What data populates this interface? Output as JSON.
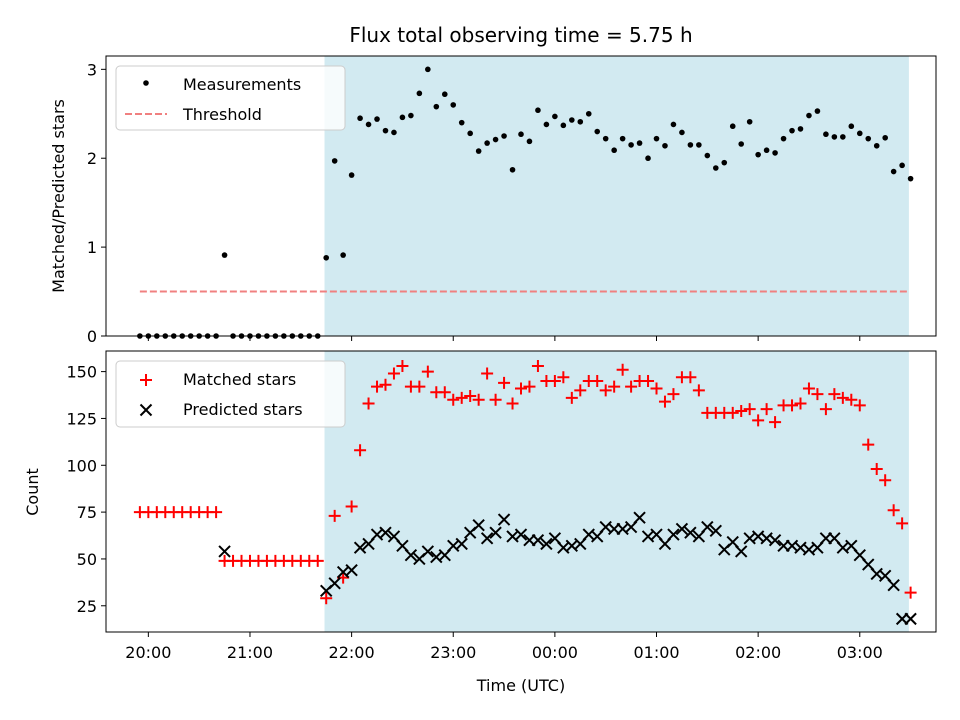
{
  "chart_data": {
    "type": "scatter",
    "title": "Flux total observing time = 5.75 h",
    "shaded_region": {
      "start": "21:44",
      "end": "03:29",
      "color": "#add8e6"
    },
    "top": {
      "ylabel": "Matched/Predicted stars",
      "ylim": [
        0,
        3.15
      ],
      "yticks": [
        "0",
        "1",
        "2",
        "3"
      ],
      "legend": {
        "position": "upper-left",
        "entries": [
          "Measurements",
          "Threshold"
        ]
      },
      "threshold": {
        "name": "Threshold",
        "value": 0.5,
        "x_start": "19:55",
        "x_end": "03:29",
        "color": "#f08080"
      },
      "measurements": {
        "name": "Measurements",
        "x": [
          "19:55",
          "20:00",
          "20:05",
          "20:10",
          "20:15",
          "20:20",
          "20:25",
          "20:30",
          "20:35",
          "20:40",
          "20:45",
          "20:50",
          "20:55",
          "21:00",
          "21:05",
          "21:10",
          "21:15",
          "21:20",
          "21:25",
          "21:30",
          "21:35",
          "21:40",
          "21:45",
          "21:50",
          "21:55",
          "22:00",
          "22:05",
          "22:10",
          "22:15",
          "22:20",
          "22:25",
          "22:30",
          "22:35",
          "22:40",
          "22:45",
          "22:50",
          "22:55",
          "23:00",
          "23:05",
          "23:10",
          "23:15",
          "23:20",
          "23:25",
          "23:30",
          "23:35",
          "23:40",
          "23:45",
          "23:50",
          "23:55",
          "00:00",
          "00:05",
          "00:10",
          "00:15",
          "00:20",
          "00:25",
          "00:30",
          "00:35",
          "00:40",
          "00:45",
          "00:50",
          "00:55",
          "01:00",
          "01:05",
          "01:10",
          "01:15",
          "01:20",
          "01:25",
          "01:30",
          "01:35",
          "01:40",
          "01:45",
          "01:50",
          "01:55",
          "02:00",
          "02:05",
          "02:10",
          "02:15",
          "02:20",
          "02:25",
          "02:30",
          "02:35",
          "02:40",
          "02:45",
          "02:50",
          "02:55",
          "03:00",
          "03:05",
          "03:10",
          "03:15",
          "03:20",
          "03:25",
          "03:30"
        ],
        "y": [
          0,
          0,
          0,
          0,
          0,
          0,
          0,
          0,
          0,
          0,
          0.91,
          0,
          0,
          0,
          0,
          0,
          0,
          0,
          0,
          0,
          0,
          0,
          0.88,
          1.97,
          0.91,
          1.81,
          2.45,
          2.38,
          2.44,
          2.31,
          2.29,
          2.46,
          2.48,
          2.73,
          3.0,
          2.58,
          2.72,
          2.6,
          2.4,
          2.28,
          2.08,
          2.17,
          2.21,
          2.25,
          1.87,
          2.27,
          2.19,
          2.54,
          2.38,
          2.47,
          2.37,
          2.43,
          2.41,
          2.5,
          2.3,
          2.22,
          2.09,
          2.22,
          2.15,
          2.17,
          2.0,
          2.22,
          2.14,
          2.38,
          2.29,
          2.15,
          2.15,
          2.03,
          1.89,
          1.95,
          2.36,
          2.16,
          2.41,
          2.04,
          2.09,
          2.06,
          2.22,
          2.31,
          2.33,
          2.48,
          2.53,
          2.27,
          2.24,
          2.24,
          2.36,
          2.28,
          2.22,
          2.14,
          2.23,
          1.85,
          1.92,
          1.77
        ]
      }
    },
    "bottom": {
      "ylabel": "Count",
      "xlabel": "Time (UTC)",
      "ylim": [
        11,
        161
      ],
      "yticks": [
        "25",
        "50",
        "75",
        "100",
        "125",
        "150"
      ],
      "xticks": [
        "20:00",
        "21:00",
        "22:00",
        "23:00",
        "00:00",
        "01:00",
        "02:00",
        "03:00"
      ],
      "legend": {
        "position": "upper-left",
        "entries": [
          "Matched stars",
          "Predicted stars"
        ]
      },
      "series": [
        {
          "name": "Matched stars",
          "color": "#ff0000",
          "marker": "plus",
          "x": [
            "19:55",
            "20:00",
            "20:05",
            "20:10",
            "20:15",
            "20:20",
            "20:25",
            "20:30",
            "20:35",
            "20:40",
            "20:45",
            "20:50",
            "20:55",
            "21:00",
            "21:05",
            "21:10",
            "21:15",
            "21:20",
            "21:25",
            "21:30",
            "21:35",
            "21:40",
            "21:45",
            "21:50",
            "21:55",
            "22:00",
            "22:05",
            "22:10",
            "22:15",
            "22:20",
            "22:25",
            "22:30",
            "22:35",
            "22:40",
            "22:45",
            "22:50",
            "22:55",
            "23:00",
            "23:05",
            "23:10",
            "23:15",
            "23:20",
            "23:25",
            "23:30",
            "23:35",
            "23:40",
            "23:45",
            "23:50",
            "23:55",
            "00:00",
            "00:05",
            "00:10",
            "00:15",
            "00:20",
            "00:25",
            "00:30",
            "00:35",
            "00:40",
            "00:45",
            "00:50",
            "00:55",
            "01:00",
            "01:05",
            "01:10",
            "01:15",
            "01:20",
            "01:25",
            "01:30",
            "01:35",
            "01:40",
            "01:45",
            "01:50",
            "01:55",
            "02:00",
            "02:05",
            "02:10",
            "02:15",
            "02:20",
            "02:25",
            "02:30",
            "02:35",
            "02:40",
            "02:45",
            "02:50",
            "02:55",
            "03:00",
            "03:05",
            "03:10",
            "03:15",
            "03:20",
            "03:25",
            "03:30"
          ],
          "y": [
            75,
            75,
            75,
            75,
            75,
            75,
            75,
            75,
            75,
            75,
            49,
            49,
            49,
            49,
            49,
            49,
            49,
            49,
            49,
            49,
            49,
            49,
            29,
            73,
            40,
            78,
            108,
            133,
            142,
            143,
            149,
            153,
            142,
            142,
            150,
            139,
            139,
            135,
            136,
            137,
            135,
            149,
            135,
            144,
            133,
            141,
            142,
            153,
            145,
            145,
            147,
            136,
            140,
            145,
            145,
            140,
            142,
            151,
            142,
            145,
            145,
            141,
            134,
            138,
            147,
            147,
            140,
            128,
            128,
            128,
            128,
            129,
            130,
            124,
            130,
            123,
            132,
            132,
            133,
            141,
            138,
            130,
            138,
            136,
            135,
            132,
            111,
            98,
            92,
            76,
            69,
            32
          ]
        },
        {
          "name": "Predicted stars",
          "color": "#000000",
          "marker": "x",
          "x": [
            "20:45",
            "21:45",
            "21:50",
            "21:55",
            "22:00",
            "22:05",
            "22:10",
            "22:15",
            "22:20",
            "22:25",
            "22:30",
            "22:35",
            "22:40",
            "22:45",
            "22:50",
            "22:55",
            "23:00",
            "23:05",
            "23:10",
            "23:15",
            "23:20",
            "23:25",
            "23:30",
            "23:35",
            "23:40",
            "23:45",
            "23:50",
            "23:55",
            "00:00",
            "00:05",
            "00:10",
            "00:15",
            "00:20",
            "00:25",
            "00:30",
            "00:35",
            "00:40",
            "00:45",
            "00:50",
            "00:55",
            "01:00",
            "01:05",
            "01:10",
            "01:15",
            "01:20",
            "01:25",
            "01:30",
            "01:35",
            "01:40",
            "01:45",
            "01:50",
            "01:55",
            "02:00",
            "02:05",
            "02:10",
            "02:15",
            "02:20",
            "02:25",
            "02:30",
            "02:35",
            "02:40",
            "02:45",
            "02:50",
            "02:55",
            "03:00",
            "03:05",
            "03:10",
            "03:15",
            "03:20",
            "03:25",
            "03:30"
          ],
          "y": [
            54,
            33,
            37,
            43,
            44,
            56,
            58,
            63,
            64,
            62,
            57,
            52,
            50,
            54,
            51,
            52,
            57,
            58,
            64,
            68,
            61,
            64,
            71,
            62,
            63,
            60,
            60,
            58,
            61,
            56,
            57,
            58,
            63,
            62,
            67,
            66,
            66,
            67,
            72,
            62,
            63,
            58,
            63,
            66,
            64,
            62,
            67,
            65,
            55,
            59,
            54,
            61,
            62,
            61,
            60,
            57,
            57,
            56,
            55,
            56,
            61,
            61,
            56,
            57,
            52,
            47,
            42,
            41,
            36,
            18,
            18
          ]
        }
      ]
    }
  }
}
